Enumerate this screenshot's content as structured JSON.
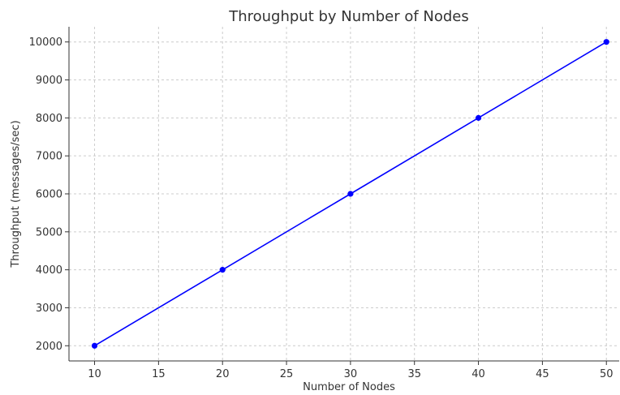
{
  "chart_data": {
    "type": "line",
    "title": "Throughput by Number of Nodes",
    "xlabel": "Number of Nodes",
    "ylabel": "Throughput (messages/sec)",
    "x": [
      10,
      20,
      30,
      40,
      50
    ],
    "series": [
      {
        "values": [
          2000,
          4000,
          6000,
          8000,
          10000
        ],
        "color": "#0000ff",
        "marker": "circle"
      }
    ],
    "xlim": [
      8,
      51
    ],
    "ylim": [
      1600,
      10400
    ],
    "xticks": [
      10,
      15,
      20,
      25,
      30,
      35,
      40,
      45,
      50
    ],
    "yticks": [
      2000,
      3000,
      4000,
      5000,
      6000,
      7000,
      8000,
      9000,
      10000
    ],
    "grid": true,
    "legend": "none"
  }
}
